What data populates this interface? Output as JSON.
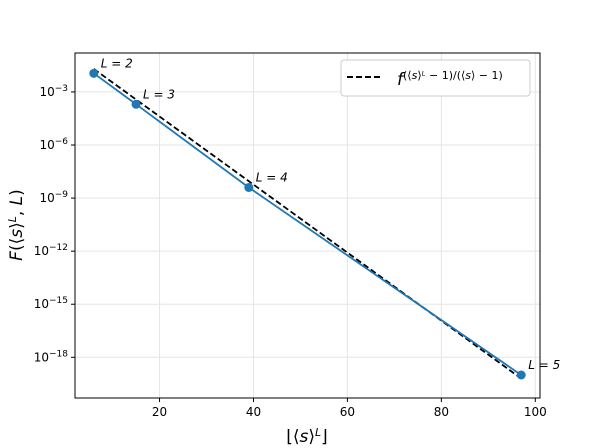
{
  "chart_data": {
    "type": "line",
    "title": "",
    "xlabel": "⌊⟨s⟩ᴸ⌋",
    "ylabel": "F(⟨s⟩ᴸ, L)",
    "x_scale": "linear",
    "y_scale": "log",
    "xlim": [
      2,
      101
    ],
    "ylim_exponent": [
      -20.3,
      -0.8
    ],
    "x_ticks": [
      20,
      40,
      60,
      80,
      100
    ],
    "y_tick_exponents": [
      -18,
      -15,
      -12,
      -9,
      -6,
      -3
    ],
    "grid": true,
    "legend_position": "top-right",
    "series": [
      {
        "name": "",
        "color": "#1f77b4",
        "style": "solid",
        "markers": true,
        "points": [
          {
            "x": 6,
            "log10_y": -1.95,
            "label": "L = 2"
          },
          {
            "x": 15,
            "log10_y": -3.7,
            "label": "L = 3"
          },
          {
            "x": 39,
            "log10_y": -8.4,
            "label": "L = 4"
          },
          {
            "x": 97,
            "log10_y": -19.0,
            "label": "L = 5"
          }
        ]
      },
      {
        "name": "f^{(⟨s⟩^L − 1)/(⟨s⟩ − 1)}",
        "color": "#000000",
        "style": "dashed",
        "markers": false,
        "points": [
          {
            "x": 6,
            "log10_y": -1.7
          },
          {
            "x": 97,
            "log10_y": -19.2
          }
        ]
      }
    ]
  }
}
